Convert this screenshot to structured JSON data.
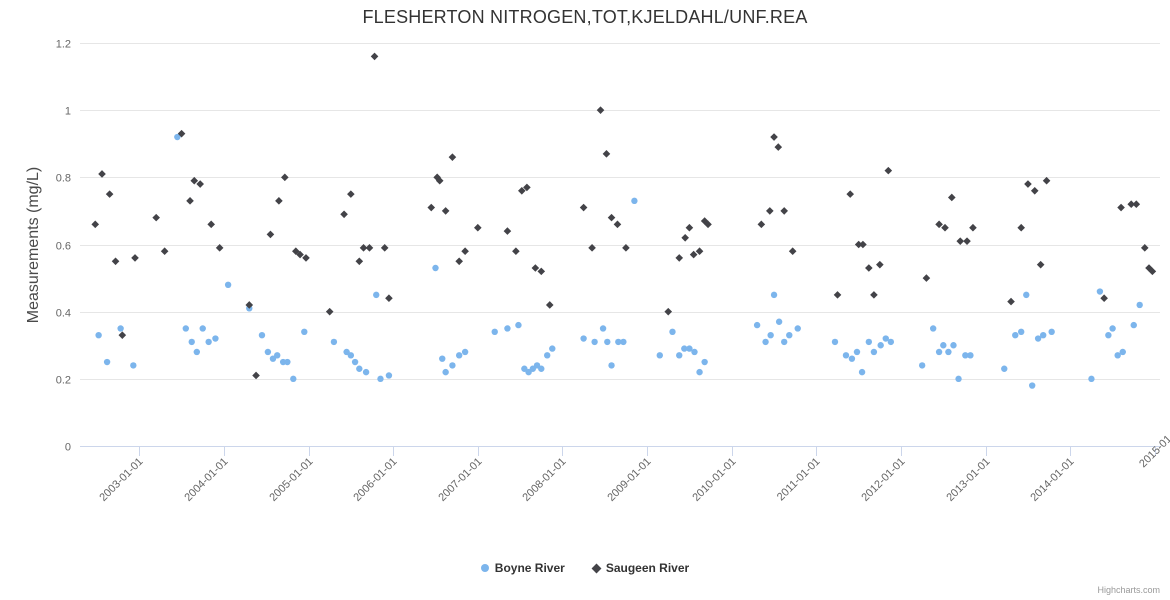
{
  "chart_data": {
    "type": "scatter",
    "title": "FLESHERTON NITROGEN,TOT,KJELDAHL/UNF.REA",
    "ylabel": "Measurements (mg/L)",
    "xlabel": "",
    "ylim": [
      0,
      1.2
    ],
    "xlim": [
      2002.3,
      2015.06
    ],
    "grid": "horizontal-only",
    "legend_position": "bottom-center",
    "background_color": "#ffffff",
    "gridline_color": "#e6e6e6",
    "axis_line_color": "#ccd6eb",
    "tick_label_color": "#666666",
    "credit": "Highcharts.com",
    "y_ticks": [
      {
        "value": 0,
        "label": "0"
      },
      {
        "value": 0.2,
        "label": "0.2"
      },
      {
        "value": 0.4,
        "label": "0.4"
      },
      {
        "value": 0.6,
        "label": "0.6"
      },
      {
        "value": 0.8,
        "label": "0.8"
      },
      {
        "value": 1,
        "label": "1"
      },
      {
        "value": 1.2,
        "label": "1.2"
      }
    ],
    "x_ticks": [
      {
        "value": 2003,
        "label": "2003-01-01"
      },
      {
        "value": 2004,
        "label": "2004-01-01"
      },
      {
        "value": 2005,
        "label": "2005-01-01"
      },
      {
        "value": 2006,
        "label": "2006-01-01"
      },
      {
        "value": 2007,
        "label": "2007-01-01"
      },
      {
        "value": 2008,
        "label": "2008-01-01"
      },
      {
        "value": 2009,
        "label": "2009-01-01"
      },
      {
        "value": 2010,
        "label": "2010-01-01"
      },
      {
        "value": 2011,
        "label": "2011-01-01"
      },
      {
        "value": 2012,
        "label": "2012-01-01"
      },
      {
        "value": 2013,
        "label": "2013-01-01"
      },
      {
        "value": 2014,
        "label": "2014-01-01"
      },
      {
        "value": 2015,
        "label": "2015-01-01"
      }
    ],
    "series": [
      {
        "name": "Boyne River",
        "color": "#7cb5ec",
        "marker": "circle",
        "points": [
          [
            2002.52,
            0.33
          ],
          [
            2002.62,
            0.25
          ],
          [
            2002.78,
            0.35
          ],
          [
            2002.93,
            0.24
          ],
          [
            2003.45,
            0.92
          ],
          [
            2003.55,
            0.35
          ],
          [
            2003.62,
            0.31
          ],
          [
            2003.68,
            0.28
          ],
          [
            2003.75,
            0.35
          ],
          [
            2003.82,
            0.31
          ],
          [
            2003.9,
            0.32
          ],
          [
            2004.05,
            0.48
          ],
          [
            2004.3,
            0.41
          ],
          [
            2004.45,
            0.33
          ],
          [
            2004.52,
            0.28
          ],
          [
            2004.58,
            0.26
          ],
          [
            2004.63,
            0.27
          ],
          [
            2004.7,
            0.25
          ],
          [
            2004.75,
            0.25
          ],
          [
            2004.82,
            0.2
          ],
          [
            2004.95,
            0.34
          ],
          [
            2005.3,
            0.31
          ],
          [
            2005.45,
            0.28
          ],
          [
            2005.5,
            0.27
          ],
          [
            2005.55,
            0.25
          ],
          [
            2005.6,
            0.23
          ],
          [
            2005.68,
            0.22
          ],
          [
            2005.8,
            0.45
          ],
          [
            2005.85,
            0.2
          ],
          [
            2005.95,
            0.21
          ],
          [
            2006.5,
            0.53
          ],
          [
            2006.58,
            0.26
          ],
          [
            2006.62,
            0.22
          ],
          [
            2006.7,
            0.24
          ],
          [
            2006.78,
            0.27
          ],
          [
            2006.85,
            0.28
          ],
          [
            2007.2,
            0.34
          ],
          [
            2007.35,
            0.35
          ],
          [
            2007.48,
            0.36
          ],
          [
            2007.55,
            0.23
          ],
          [
            2007.6,
            0.22
          ],
          [
            2007.65,
            0.23
          ],
          [
            2007.7,
            0.24
          ],
          [
            2007.75,
            0.23
          ],
          [
            2007.82,
            0.27
          ],
          [
            2007.88,
            0.29
          ],
          [
            2008.25,
            0.32
          ],
          [
            2008.38,
            0.31
          ],
          [
            2008.48,
            0.35
          ],
          [
            2008.53,
            0.31
          ],
          [
            2008.58,
            0.24
          ],
          [
            2008.66,
            0.31
          ],
          [
            2008.72,
            0.31
          ],
          [
            2008.85,
            0.73
          ],
          [
            2009.15,
            0.27
          ],
          [
            2009.3,
            0.34
          ],
          [
            2009.38,
            0.27
          ],
          [
            2009.44,
            0.29
          ],
          [
            2009.5,
            0.29
          ],
          [
            2009.56,
            0.28
          ],
          [
            2009.62,
            0.22
          ],
          [
            2009.68,
            0.25
          ],
          [
            2010.3,
            0.36
          ],
          [
            2010.4,
            0.31
          ],
          [
            2010.46,
            0.33
          ],
          [
            2010.5,
            0.45
          ],
          [
            2010.56,
            0.37
          ],
          [
            2010.62,
            0.31
          ],
          [
            2010.68,
            0.33
          ],
          [
            2010.78,
            0.35
          ],
          [
            2011.22,
            0.31
          ],
          [
            2011.35,
            0.27
          ],
          [
            2011.42,
            0.26
          ],
          [
            2011.48,
            0.28
          ],
          [
            2011.54,
            0.22
          ],
          [
            2011.62,
            0.31
          ],
          [
            2011.68,
            0.28
          ],
          [
            2011.76,
            0.3
          ],
          [
            2011.82,
            0.32
          ],
          [
            2011.88,
            0.31
          ],
          [
            2012.25,
            0.24
          ],
          [
            2012.38,
            0.35
          ],
          [
            2012.45,
            0.28
          ],
          [
            2012.5,
            0.3
          ],
          [
            2012.56,
            0.28
          ],
          [
            2012.62,
            0.3
          ],
          [
            2012.68,
            0.2
          ],
          [
            2012.76,
            0.27
          ],
          [
            2012.82,
            0.27
          ],
          [
            2013.22,
            0.23
          ],
          [
            2013.35,
            0.33
          ],
          [
            2013.42,
            0.34
          ],
          [
            2013.48,
            0.45
          ],
          [
            2013.55,
            0.18
          ],
          [
            2013.62,
            0.32
          ],
          [
            2013.68,
            0.33
          ],
          [
            2013.78,
            0.34
          ],
          [
            2014.25,
            0.2
          ],
          [
            2014.35,
            0.46
          ],
          [
            2014.45,
            0.33
          ],
          [
            2014.5,
            0.35
          ],
          [
            2014.56,
            0.27
          ],
          [
            2014.62,
            0.28
          ],
          [
            2014.75,
            0.36
          ],
          [
            2014.82,
            0.42
          ]
        ]
      },
      {
        "name": "Saugeen River",
        "color": "#434348",
        "marker": "diamond",
        "points": [
          [
            2002.48,
            0.66
          ],
          [
            2002.56,
            0.81
          ],
          [
            2002.65,
            0.75
          ],
          [
            2002.72,
            0.55
          ],
          [
            2002.8,
            0.33
          ],
          [
            2002.95,
            0.56
          ],
          [
            2003.2,
            0.68
          ],
          [
            2003.3,
            0.58
          ],
          [
            2003.5,
            0.93
          ],
          [
            2003.6,
            0.73
          ],
          [
            2003.65,
            0.79
          ],
          [
            2003.72,
            0.78
          ],
          [
            2003.85,
            0.66
          ],
          [
            2003.95,
            0.59
          ],
          [
            2004.3,
            0.42
          ],
          [
            2004.38,
            0.21
          ],
          [
            2004.55,
            0.63
          ],
          [
            2004.65,
            0.73
          ],
          [
            2004.72,
            0.8
          ],
          [
            2004.85,
            0.58
          ],
          [
            2004.9,
            0.57
          ],
          [
            2004.97,
            0.56
          ],
          [
            2005.25,
            0.4
          ],
          [
            2005.42,
            0.69
          ],
          [
            2005.5,
            0.75
          ],
          [
            2005.6,
            0.55
          ],
          [
            2005.65,
            0.59
          ],
          [
            2005.72,
            0.59
          ],
          [
            2005.78,
            1.16
          ],
          [
            2005.9,
            0.59
          ],
          [
            2005.95,
            0.44
          ],
          [
            2006.45,
            0.71
          ],
          [
            2006.52,
            0.8
          ],
          [
            2006.55,
            0.79
          ],
          [
            2006.62,
            0.7
          ],
          [
            2006.7,
            0.86
          ],
          [
            2006.78,
            0.55
          ],
          [
            2006.85,
            0.58
          ],
          [
            2007.0,
            0.65
          ],
          [
            2007.35,
            0.64
          ],
          [
            2007.45,
            0.58
          ],
          [
            2007.52,
            0.76
          ],
          [
            2007.58,
            0.77
          ],
          [
            2007.68,
            0.53
          ],
          [
            2007.75,
            0.52
          ],
          [
            2007.85,
            0.42
          ],
          [
            2008.25,
            0.71
          ],
          [
            2008.35,
            0.59
          ],
          [
            2008.45,
            1.0
          ],
          [
            2008.52,
            0.87
          ],
          [
            2008.58,
            0.68
          ],
          [
            2008.65,
            0.66
          ],
          [
            2008.75,
            0.59
          ],
          [
            2009.25,
            0.4
          ],
          [
            2009.38,
            0.56
          ],
          [
            2009.45,
            0.62
          ],
          [
            2009.5,
            0.65
          ],
          [
            2009.55,
            0.57
          ],
          [
            2009.62,
            0.58
          ],
          [
            2009.68,
            0.67
          ],
          [
            2009.72,
            0.66
          ],
          [
            2010.35,
            0.66
          ],
          [
            2010.45,
            0.7
          ],
          [
            2010.5,
            0.92
          ],
          [
            2010.55,
            0.89
          ],
          [
            2010.62,
            0.7
          ],
          [
            2010.72,
            0.58
          ],
          [
            2011.25,
            0.45
          ],
          [
            2011.4,
            0.75
          ],
          [
            2011.5,
            0.6
          ],
          [
            2011.55,
            0.6
          ],
          [
            2011.62,
            0.53
          ],
          [
            2011.68,
            0.45
          ],
          [
            2011.75,
            0.54
          ],
          [
            2011.85,
            0.82
          ],
          [
            2012.3,
            0.5
          ],
          [
            2012.45,
            0.66
          ],
          [
            2012.52,
            0.65
          ],
          [
            2012.6,
            0.74
          ],
          [
            2012.7,
            0.61
          ],
          [
            2012.78,
            0.61
          ],
          [
            2012.85,
            0.65
          ],
          [
            2013.3,
            0.43
          ],
          [
            2013.42,
            0.65
          ],
          [
            2013.5,
            0.78
          ],
          [
            2013.58,
            0.76
          ],
          [
            2013.65,
            0.54
          ],
          [
            2013.72,
            0.79
          ],
          [
            2014.4,
            0.44
          ],
          [
            2014.6,
            0.71
          ],
          [
            2014.72,
            0.72
          ],
          [
            2014.78,
            0.72
          ],
          [
            2014.88,
            0.59
          ],
          [
            2014.93,
            0.53
          ],
          [
            2014.97,
            0.52
          ]
        ]
      }
    ]
  }
}
